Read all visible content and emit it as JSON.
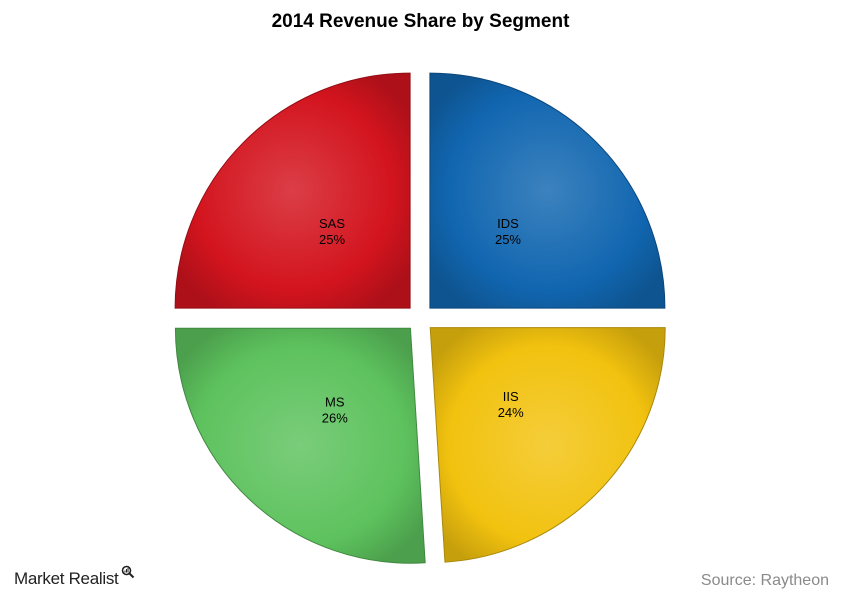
{
  "chart_data": {
    "type": "pie",
    "title": "2014 Revenue Share by Segment",
    "exploded": true,
    "slices": [
      {
        "name": "IDS",
        "value": 25,
        "label": "25%",
        "color": "#1166b0"
      },
      {
        "name": "IIS",
        "value": 24,
        "label": "24%",
        "color": "#f2c20f"
      },
      {
        "name": "MS",
        "value": 26,
        "label": "26%",
        "color": "#5dc25d"
      },
      {
        "name": "SAS",
        "value": 25,
        "label": "25%",
        "color": "#d3141e"
      }
    ]
  },
  "footer": {
    "brand": "Market Realist",
    "source": "Source: Raytheon"
  }
}
